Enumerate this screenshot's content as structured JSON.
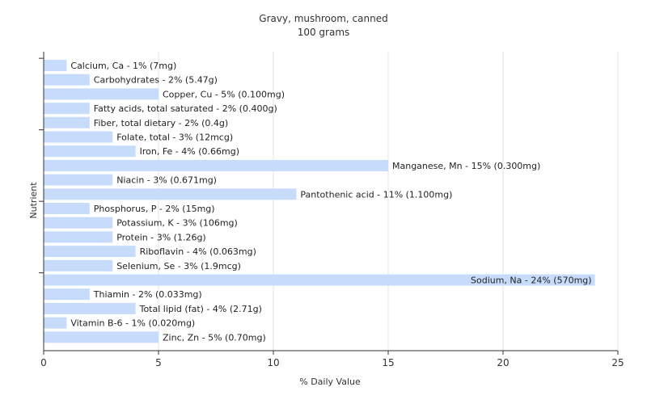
{
  "chart_data": {
    "type": "bar",
    "orientation": "horizontal",
    "title": "Gravy, mushroom, canned",
    "subtitle": "100 grams",
    "xlabel": "% Daily Value",
    "ylabel": "Nutrient",
    "xlim": [
      0,
      25
    ],
    "xticks": [
      "0",
      "5",
      "10",
      "15",
      "20",
      "25"
    ],
    "grid": "vertical",
    "bar_color": "#c6dcfa",
    "categories": [
      "Calcium, Ca",
      "Carbohydrates",
      "Copper, Cu",
      "Fatty acids, total saturated",
      "Fiber, total dietary",
      "Folate, total",
      "Iron, Fe",
      "Manganese, Mn",
      "Niacin",
      "Pantothenic acid",
      "Phosphorus, P",
      "Potassium, K",
      "Protein",
      "Riboflavin",
      "Selenium, Se",
      "Sodium, Na",
      "Thiamin",
      "Total lipid (fat)",
      "Vitamin B-6",
      "Zinc, Zn"
    ],
    "values": [
      1,
      2,
      5,
      2,
      2,
      3,
      4,
      15,
      3,
      11,
      2,
      3,
      3,
      4,
      3,
      24,
      2,
      4,
      1,
      5
    ],
    "labels": [
      "Calcium, Ca - 1% (7mg)",
      "Carbohydrates - 2% (5.47g)",
      "Copper, Cu - 5% (0.100mg)",
      "Fatty acids, total saturated - 2% (0.400g)",
      "Fiber, total dietary - 2% (0.4g)",
      "Folate, total - 3% (12mcg)",
      "Iron, Fe - 4% (0.66mg)",
      "Manganese, Mn - 15% (0.300mg)",
      "Niacin - 3% (0.671mg)",
      "Pantothenic acid - 11% (1.100mg)",
      "Phosphorus, P - 2% (15mg)",
      "Potassium, K - 3% (106mg)",
      "Protein - 3% (1.26g)",
      "Riboflavin - 4% (0.063mg)",
      "Selenium, Se - 3% (1.9mcg)",
      "Sodium, Na - 24% (570mg)",
      "Thiamin - 2% (0.033mg)",
      "Total lipid (fat) - 4% (2.71g)",
      "Vitamin B-6 - 1% (0.020mg)",
      "Zinc, Zn - 5% (0.70mg)"
    ]
  }
}
